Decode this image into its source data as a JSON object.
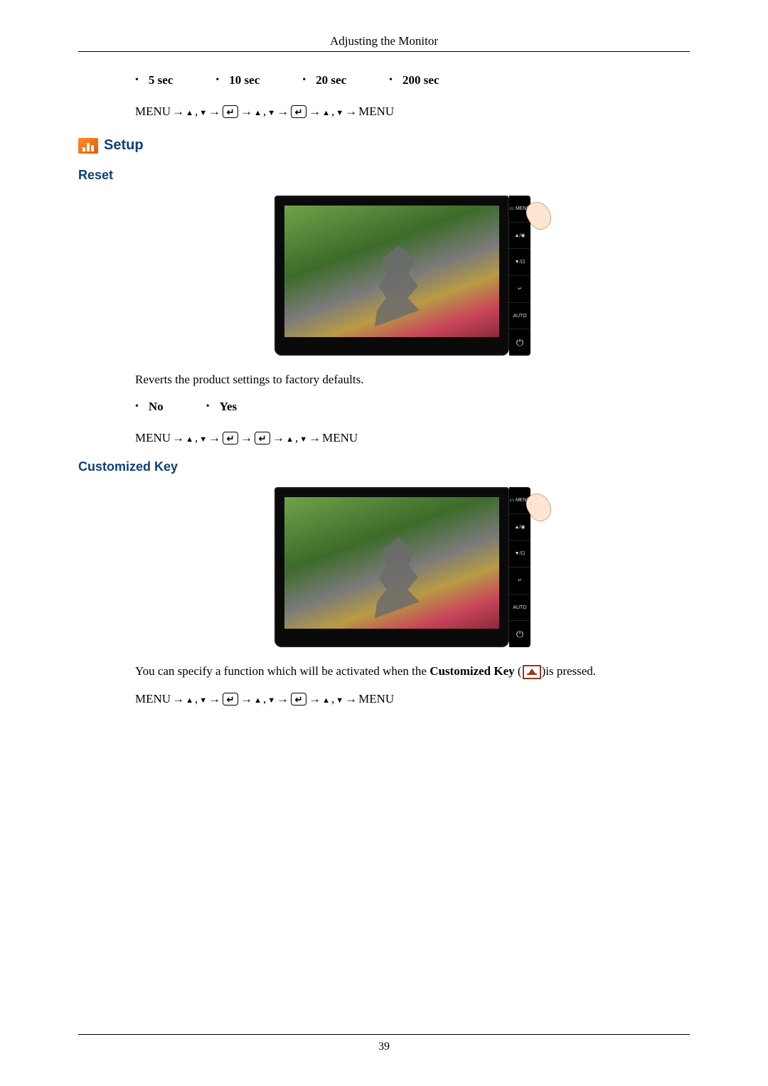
{
  "header": {
    "title": "Adjusting the Monitor"
  },
  "timeout_options": [
    "5 sec",
    "10 sec",
    "20 sec",
    "200 sec"
  ],
  "nav_sequence_1_parts": [
    "MENU",
    " → ",
    "UP",
    " , ",
    "DOWN",
    " → ",
    "ENTER",
    " → ",
    "UP",
    " , ",
    "DOWN",
    " → ",
    "ENTER",
    " → ",
    "UP",
    " , ",
    "DOWN",
    " → ",
    "MENU"
  ],
  "setup_section": {
    "title": "Setup"
  },
  "reset": {
    "title": "Reset",
    "description": "Reverts the product settings to factory defaults.",
    "options": [
      "No",
      "Yes"
    ],
    "nav_parts": [
      "MENU",
      " → ",
      "UP",
      " , ",
      "DOWN",
      " → ",
      "ENTER",
      " → ",
      "ENTER",
      " → ",
      "UP",
      " , ",
      "DOWN",
      " → ",
      "MENU"
    ]
  },
  "customized_key": {
    "title": "Customized Key",
    "description_pre": "You can specify a function which will be activated when the ",
    "description_bold": "Customized Key",
    "description_post_open": " (",
    "description_post_close": ")is pressed.",
    "nav_parts": [
      "MENU",
      " → ",
      "UP",
      " , ",
      "DOWN",
      " → ",
      "ENTER",
      " → ",
      "UP",
      " , ",
      "DOWN",
      " →",
      "ENTER",
      " → ",
      "UP",
      " , ",
      "DOWN",
      " →",
      "MENU"
    ]
  },
  "button_strip": [
    "▭\nMENU",
    "▲/◉",
    "▼/⊡",
    "↵",
    "AUTO",
    "⏻"
  ],
  "footer": {
    "page_number": "39"
  }
}
